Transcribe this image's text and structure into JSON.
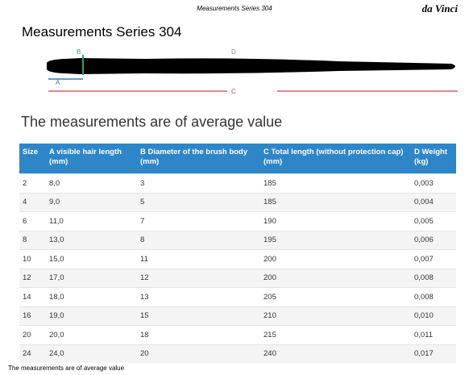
{
  "header": {
    "running_title": "Measurements Series 304",
    "logo": "da Vinci"
  },
  "title": "Measurements Series 304",
  "diagram": {
    "labels": {
      "a": "A",
      "b": "B",
      "c": "C",
      "d": "D"
    }
  },
  "subtitle": "The measurements are of average value",
  "table": {
    "columns": [
      "Size",
      "A visible hair length (mm)",
      "B Diameter of the brush body (mm)",
      "C Total length (without protection cap) (mm)",
      "D Weight (kg)"
    ],
    "rows": [
      [
        "2",
        "8,0",
        "3",
        "185",
        "0,003"
      ],
      [
        "4",
        "9,0",
        "5",
        "185",
        "0,004"
      ],
      [
        "6",
        "11,0",
        "7",
        "190",
        "0,005"
      ],
      [
        "8",
        "13,0",
        "8",
        "195",
        "0,006"
      ],
      [
        "10",
        "15,0",
        "11",
        "200",
        "0,007"
      ],
      [
        "12",
        "17,0",
        "12",
        "200",
        "0,008"
      ],
      [
        "14",
        "18,0",
        "13",
        "205",
        "0,008"
      ],
      [
        "16",
        "19,0",
        "15",
        "210",
        "0,010"
      ],
      [
        "20",
        "20,0",
        "18",
        "215",
        "0,011"
      ],
      [
        "24",
        "24,0",
        "20",
        "240",
        "0,017"
      ]
    ]
  },
  "footer": "The measurements are of average value"
}
